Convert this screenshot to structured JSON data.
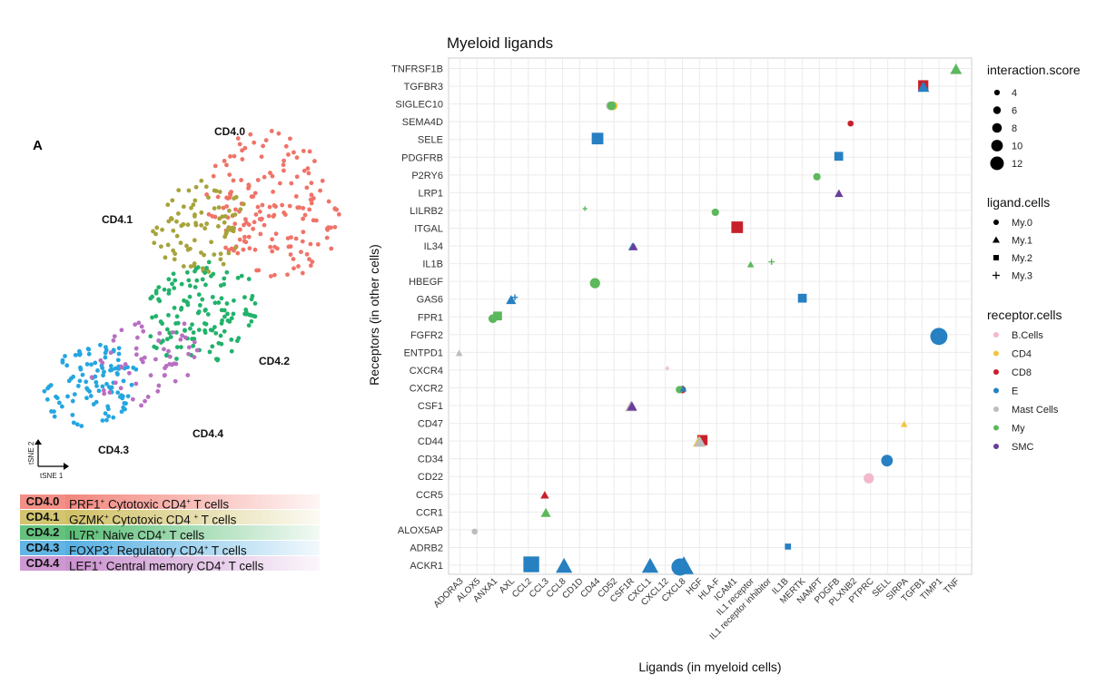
{
  "panel_label": "A",
  "tsne": {
    "axis_x": "tSNE 1",
    "axis_y": "tSNE 2",
    "clusters": [
      {
        "id": "CD4.0",
        "color": "#F07368"
      },
      {
        "id": "CD4.1",
        "color": "#A7A33B"
      },
      {
        "id": "CD4.2",
        "color": "#22B26B"
      },
      {
        "id": "CD4.3",
        "color": "#25A6E0"
      },
      {
        "id": "CD4.4",
        "color": "#B86FC2"
      }
    ]
  },
  "cluster_legend": [
    {
      "code": "CD4.0",
      "marker": "PRF1",
      "text": " Cytotoxic CD4",
      "text2": " T cells",
      "color": "#F07368"
    },
    {
      "code": "CD4.1",
      "marker": "GZMK",
      "text": " Cytotoxic CD4 ",
      "text2": " T cells",
      "color": "#C8B64C"
    },
    {
      "code": "CD4.2",
      "marker": "IL7R",
      "text": " Naive CD4",
      "text2": " T cells",
      "color": "#3DB35E"
    },
    {
      "code": "CD4.3",
      "marker": "FOXP3",
      "text": " Regulatory CD4",
      "text2": " T cells",
      "color": "#3AA3DD"
    },
    {
      "code": "CD4.4",
      "marker": "LEF1",
      "text": " Central memory CD4",
      "text2": " T cells",
      "color": "#C27FC7"
    }
  ],
  "chart_data": {
    "type": "scatter",
    "title": "Myeloid ligands",
    "xlabel": "Ligands (in myeloid cells)",
    "ylabel": "Receptors (in other cells)",
    "x_categories": [
      "ADORA3",
      "ALOX5",
      "ANXA1",
      "AXL",
      "CCL2",
      "CCL3",
      "CCL8",
      "CD1D",
      "CD44",
      "CD52",
      "CSF1R",
      "CXCL1",
      "CXCL12",
      "CXCL8",
      "HGF",
      "HLA-F",
      "ICAM1",
      "IL1 receptor",
      "IL1 receptor inhibitor",
      "IL1B",
      "MERTK",
      "NAMPT",
      "PDGFB",
      "PLXNB2",
      "PTPRC",
      "SELL",
      "SIRPA",
      "TGFB1",
      "TIMP1",
      "TNF"
    ],
    "y_categories": [
      "ACKR1",
      "ADRB2",
      "ALOX5AP",
      "CCR1",
      "CCR5",
      "CD22",
      "CD34",
      "CD44",
      "CD47",
      "CSF1",
      "CXCR2",
      "CXCR4",
      "ENTPD1",
      "FGFR2",
      "FPR1",
      "GAS6",
      "HBEGF",
      "IL1B",
      "IL34",
      "ITGAL",
      "LILRB2",
      "LRP1",
      "P2RY6",
      "PDGFRB",
      "SELE",
      "SEMA4D",
      "SIGLEC10",
      "TGFBR3",
      "TNFRSF1B"
    ],
    "grid": true,
    "legend": {
      "size_title": "interaction.score",
      "size_values": [
        4,
        6,
        8,
        10,
        12
      ],
      "shape_title": "ligand.cells",
      "shapes": [
        {
          "name": "My.0",
          "shape": "circle"
        },
        {
          "name": "My.1",
          "shape": "triangle"
        },
        {
          "name": "My.2",
          "shape": "square"
        },
        {
          "name": "My.3",
          "shape": "plus"
        }
      ],
      "color_title": "receptor.cells",
      "colors": [
        {
          "name": "B.Cells",
          "color": "#F2B8CD"
        },
        {
          "name": "CD4",
          "color": "#F5C342"
        },
        {
          "name": "CD8",
          "color": "#C8202A"
        },
        {
          "name": "E",
          "color": "#2680C2"
        },
        {
          "name": "Mast Cells",
          "color": "#BDBDBD"
        },
        {
          "name": "My",
          "color": "#5CB85C"
        },
        {
          "name": "SMC",
          "color": "#6A3D9A"
        }
      ],
      "position": "right"
    },
    "points": [
      {
        "x": "ADORA3",
        "y": "ENTPD1",
        "cell": "Mast Cells",
        "shape": "triangle",
        "score": 4
      },
      {
        "x": "ALOX5",
        "y": "ALOX5AP",
        "cell": "Mast Cells",
        "shape": "circle",
        "score": 4
      },
      {
        "x": "ANXA1",
        "y": "FPR1",
        "cell": "My",
        "shape": "circle",
        "score": 6
      },
      {
        "x": "ANXA1",
        "y": "FPR1",
        "cell": "My",
        "shape": "square",
        "score": 6
      },
      {
        "x": "AXL",
        "y": "GAS6",
        "cell": "E",
        "shape": "triangle",
        "score": 6
      },
      {
        "x": "AXL",
        "y": "GAS6",
        "cell": "E",
        "shape": "plus",
        "score": 4
      },
      {
        "x": "CCL2",
        "y": "ACKR1",
        "cell": "E",
        "shape": "square",
        "score": 11
      },
      {
        "x": "CCL3",
        "y": "CCR5",
        "cell": "CD8",
        "shape": "triangle",
        "score": 5
      },
      {
        "x": "CCL3",
        "y": "CCR1",
        "cell": "My",
        "shape": "triangle",
        "score": 6
      },
      {
        "x": "CCL8",
        "y": "ACKR1",
        "cell": "E",
        "shape": "triangle",
        "score": 10
      },
      {
        "x": "CD1D",
        "y": "LILRB2",
        "cell": "My",
        "shape": "plus",
        "score": 3
      },
      {
        "x": "CD44",
        "y": "SELE",
        "cell": "E",
        "shape": "square",
        "score": 8
      },
      {
        "x": "CD44",
        "y": "HBEGF",
        "cell": "My",
        "shape": "circle",
        "score": 7
      },
      {
        "x": "CD52",
        "y": "SIGLEC10",
        "cell": "CD4",
        "shape": "circle",
        "score": 6
      },
      {
        "x": "CD52",
        "y": "SIGLEC10",
        "cell": "Mast Cells",
        "shape": "circle",
        "score": 6
      },
      {
        "x": "CD52",
        "y": "SIGLEC10",
        "cell": "My",
        "shape": "circle",
        "score": 6
      },
      {
        "x": "CSF1R",
        "y": "IL34",
        "cell": "E",
        "shape": "triangle",
        "score": 5
      },
      {
        "x": "CSF1R",
        "y": "IL34",
        "cell": "SMC",
        "shape": "triangle",
        "score": 5
      },
      {
        "x": "CSF1R",
        "y": "CSF1",
        "cell": "Mast Cells",
        "shape": "triangle",
        "score": 7
      },
      {
        "x": "CSF1R",
        "y": "CSF1",
        "cell": "SMC",
        "shape": "triangle",
        "score": 6
      },
      {
        "x": "CXCL1",
        "y": "ACKR1",
        "cell": "E",
        "shape": "triangle",
        "score": 10
      },
      {
        "x": "CXCL12",
        "y": "CXCR4",
        "cell": "B.Cells",
        "shape": "plus",
        "score": 3
      },
      {
        "x": "CXCL8",
        "y": "ACKR1",
        "cell": "E",
        "shape": "circle",
        "score": 12
      },
      {
        "x": "CXCL8",
        "y": "ACKR1",
        "cell": "E",
        "shape": "triangle",
        "score": 12
      },
      {
        "x": "CXCL8",
        "y": "CXCR2",
        "cell": "CD8",
        "shape": "circle",
        "score": 5
      },
      {
        "x": "CXCL8",
        "y": "CXCR2",
        "cell": "My",
        "shape": "circle",
        "score": 5
      },
      {
        "x": "CXCL8",
        "y": "CXCR2",
        "cell": "E",
        "shape": "triangle",
        "score": 4
      },
      {
        "x": "HGF",
        "y": "CD44",
        "cell": "CD8",
        "shape": "square",
        "score": 7
      },
      {
        "x": "HGF",
        "y": "CD44",
        "cell": "CD4",
        "shape": "triangle",
        "score": 7
      },
      {
        "x": "HGF",
        "y": "CD44",
        "cell": "Mast Cells",
        "shape": "triangle",
        "score": 7
      },
      {
        "x": "HLA-F",
        "y": "LILRB2",
        "cell": "My",
        "shape": "circle",
        "score": 5
      },
      {
        "x": "ICAM1",
        "y": "ITGAL",
        "cell": "CD8",
        "shape": "square",
        "score": 8
      },
      {
        "x": "IL1 receptor",
        "y": "IL1B",
        "cell": "My",
        "shape": "triangle",
        "score": 4
      },
      {
        "x": "IL1 receptor inhibitor",
        "y": "IL1B",
        "cell": "My",
        "shape": "plus",
        "score": 4
      },
      {
        "x": "IL1B",
        "y": "ADRB2",
        "cell": "E",
        "shape": "square",
        "score": 4
      },
      {
        "x": "MERTK",
        "y": "GAS6",
        "cell": "E",
        "shape": "square",
        "score": 6
      },
      {
        "x": "NAMPT",
        "y": "P2RY6",
        "cell": "My",
        "shape": "circle",
        "score": 5
      },
      {
        "x": "PDGFB",
        "y": "PDGFRB",
        "cell": "E",
        "shape": "square",
        "score": 6
      },
      {
        "x": "PDGFB",
        "y": "LRP1",
        "cell": "SMC",
        "shape": "triangle",
        "score": 5
      },
      {
        "x": "PLXNB2",
        "y": "SEMA4D",
        "cell": "CD8",
        "shape": "circle",
        "score": 4
      },
      {
        "x": "PTPRC",
        "y": "CD22",
        "cell": "B.Cells",
        "shape": "circle",
        "score": 7
      },
      {
        "x": "SELL",
        "y": "CD34",
        "cell": "E",
        "shape": "circle",
        "score": 8
      },
      {
        "x": "SIRPA",
        "y": "CD47",
        "cell": "CD4",
        "shape": "triangle",
        "score": 4
      },
      {
        "x": "TGFB1",
        "y": "TGFBR3",
        "cell": "CD8",
        "shape": "square",
        "score": 7
      },
      {
        "x": "TGFB1",
        "y": "TGFBR3",
        "cell": "E",
        "shape": "triangle",
        "score": 7
      },
      {
        "x": "TIMP1",
        "y": "FGFR2",
        "cell": "E",
        "shape": "circle",
        "score": 12
      },
      {
        "x": "TNF",
        "y": "TNFRSF1B",
        "cell": "My",
        "shape": "triangle",
        "score": 7
      }
    ]
  }
}
